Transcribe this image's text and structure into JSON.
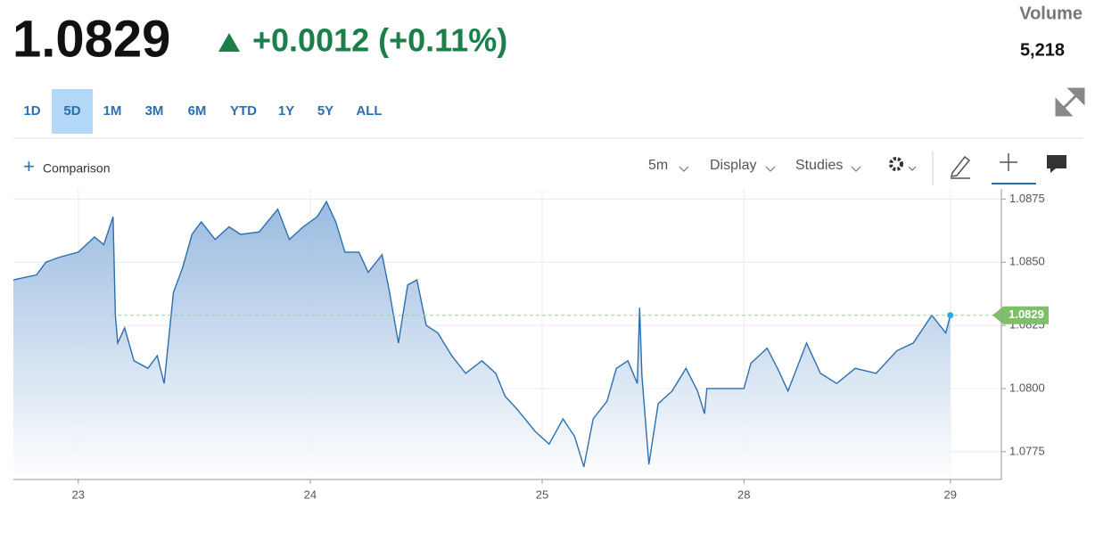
{
  "header": {
    "price": "1.0829",
    "change": "+0.0012 (+0.11%)",
    "volume_label": "Volume",
    "volume": "5,218"
  },
  "ranges": [
    "1D",
    "5D",
    "1M",
    "3M",
    "6M",
    "YTD",
    "1Y",
    "5Y",
    "ALL"
  ],
  "toolbar": {
    "comparison": "Comparison",
    "interval": "5m",
    "display": "Display",
    "studies": "Studies"
  },
  "chart_data": {
    "type": "area",
    "color": "#2a6fb0",
    "x": [
      -0.28,
      -0.18,
      -0.14,
      -0.08,
      0.0,
      0.07,
      0.11,
      0.15,
      0.16,
      0.17,
      0.2,
      0.24,
      0.3,
      0.34,
      0.37,
      0.41,
      0.45,
      0.49,
      0.53,
      0.59,
      0.65,
      0.7,
      0.78,
      0.86,
      0.91,
      0.97,
      1.03,
      1.07,
      1.11,
      1.15,
      1.21,
      1.25,
      1.31,
      1.34,
      1.38,
      1.42,
      1.46,
      1.5,
      1.55,
      1.61,
      1.67,
      1.74,
      1.8,
      1.84,
      1.89,
      1.97,
      2.03,
      2.09,
      2.14,
      2.18,
      2.22,
      2.28,
      2.32,
      2.37,
      2.41,
      2.42,
      2.43,
      2.46,
      2.5,
      2.56,
      2.62,
      2.67,
      2.7,
      2.71,
      2.87,
      2.9,
      2.97,
      3.02,
      3.06,
      3.14,
      3.2,
      3.27,
      3.35,
      3.44,
      3.53,
      3.6,
      3.68,
      3.74,
      3.76
    ],
    "values": [
      1.0843,
      1.0845,
      1.085,
      1.0852,
      1.0854,
      1.086,
      1.0857,
      1.0868,
      1.0829,
      1.0818,
      1.0824,
      1.0811,
      1.0808,
      1.0813,
      1.0802,
      1.0838,
      1.0848,
      1.0861,
      1.0866,
      1.0859,
      1.0864,
      1.0861,
      1.0862,
      1.0871,
      1.0859,
      1.0864,
      1.0868,
      1.0874,
      1.0866,
      1.0854,
      1.0854,
      1.0846,
      1.0853,
      1.0839,
      1.0818,
      1.0841,
      1.0843,
      1.0825,
      1.0822,
      1.0813,
      1.0806,
      1.0811,
      1.0806,
      1.0797,
      1.0792,
      1.0783,
      1.0778,
      1.0788,
      1.0781,
      1.0769,
      1.0788,
      1.0795,
      1.0808,
      1.0811,
      1.0802,
      1.0832,
      1.0805,
      1.077,
      1.0794,
      1.0799,
      1.0808,
      1.0799,
      1.079,
      1.08,
      1.08,
      1.081,
      1.0816,
      1.0807,
      1.0799,
      1.0818,
      1.0806,
      1.0802,
      1.0808,
      1.0806,
      1.0815,
      1.0818,
      1.0829,
      1.0822,
      1.0829
    ],
    "xlim": [
      -0.28,
      3.98
    ],
    "xticks": [
      {
        "value": 0,
        "label": "23"
      },
      {
        "value": 1,
        "label": "24"
      },
      {
        "value": 2,
        "label": "25"
      },
      {
        "value": 2.87,
        "label": "28"
      },
      {
        "value": 3.76,
        "label": "29"
      }
    ],
    "ylim": [
      1.0764,
      1.0879
    ],
    "yticks": [
      1.0775,
      {
        "value": 1.08,
        "label": "1.0800"
      },
      1.0825,
      {
        "value": 1.085,
        "label": "1.0850"
      },
      1.0875
    ],
    "grid": true
  }
}
